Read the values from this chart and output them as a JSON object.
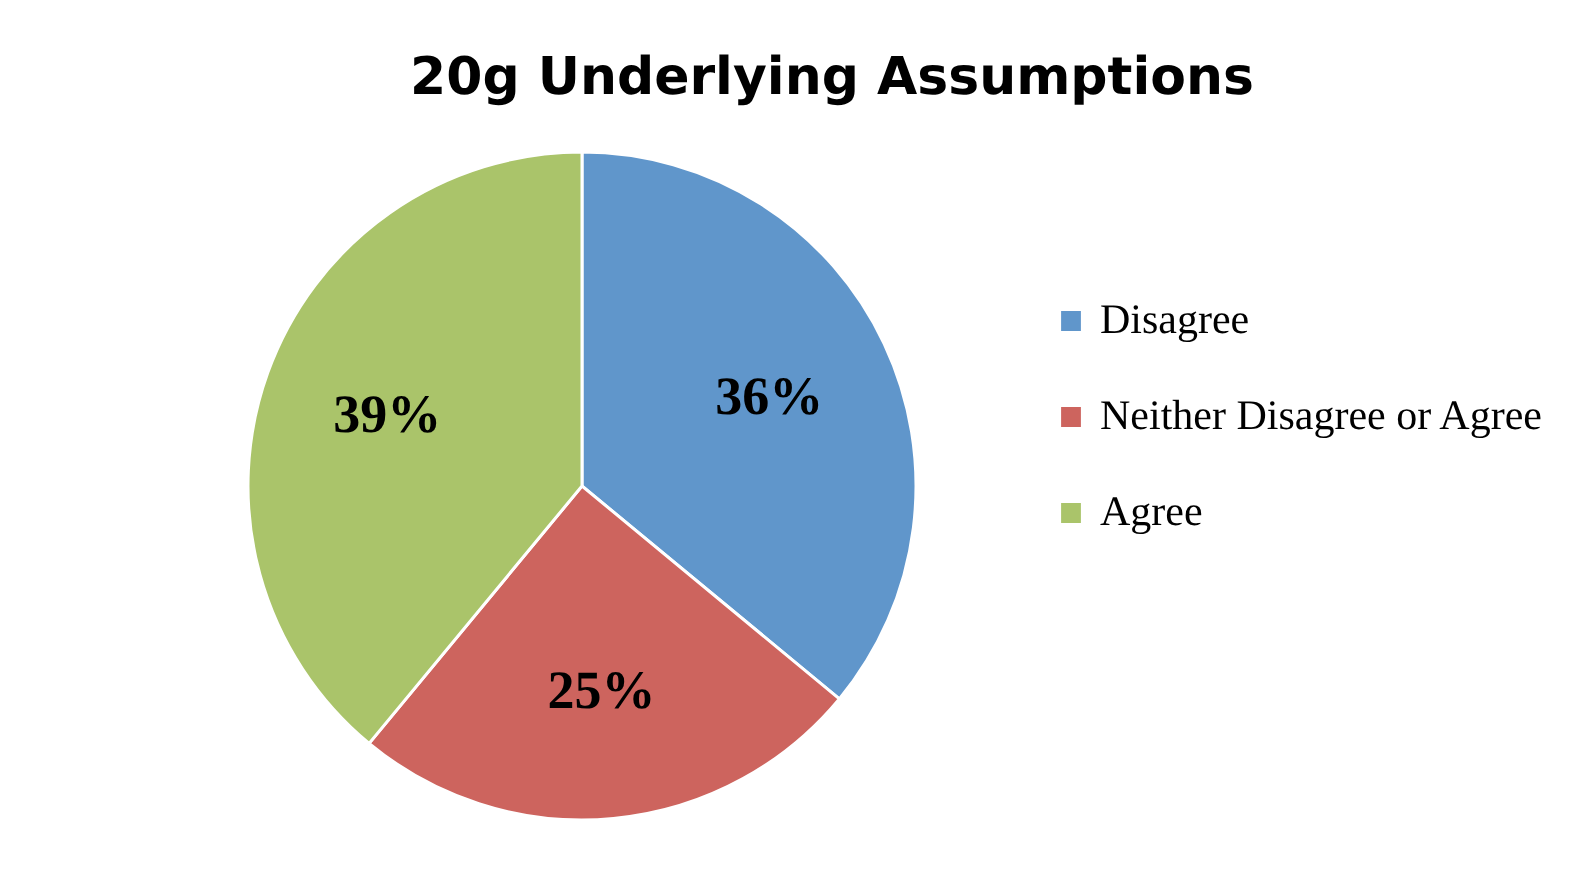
{
  "chart_data": {
    "type": "pie",
    "title": "20g Underlying Assumptions",
    "categories": [
      "Disagree",
      "Neither Disagree or Agree",
      "Agree"
    ],
    "values": [
      36,
      25,
      39
    ],
    "colors": [
      "#6096cb",
      "#cd645e",
      "#aac46a"
    ],
    "value_labels": [
      "36%",
      "25%",
      "39%"
    ],
    "legend": "right"
  }
}
